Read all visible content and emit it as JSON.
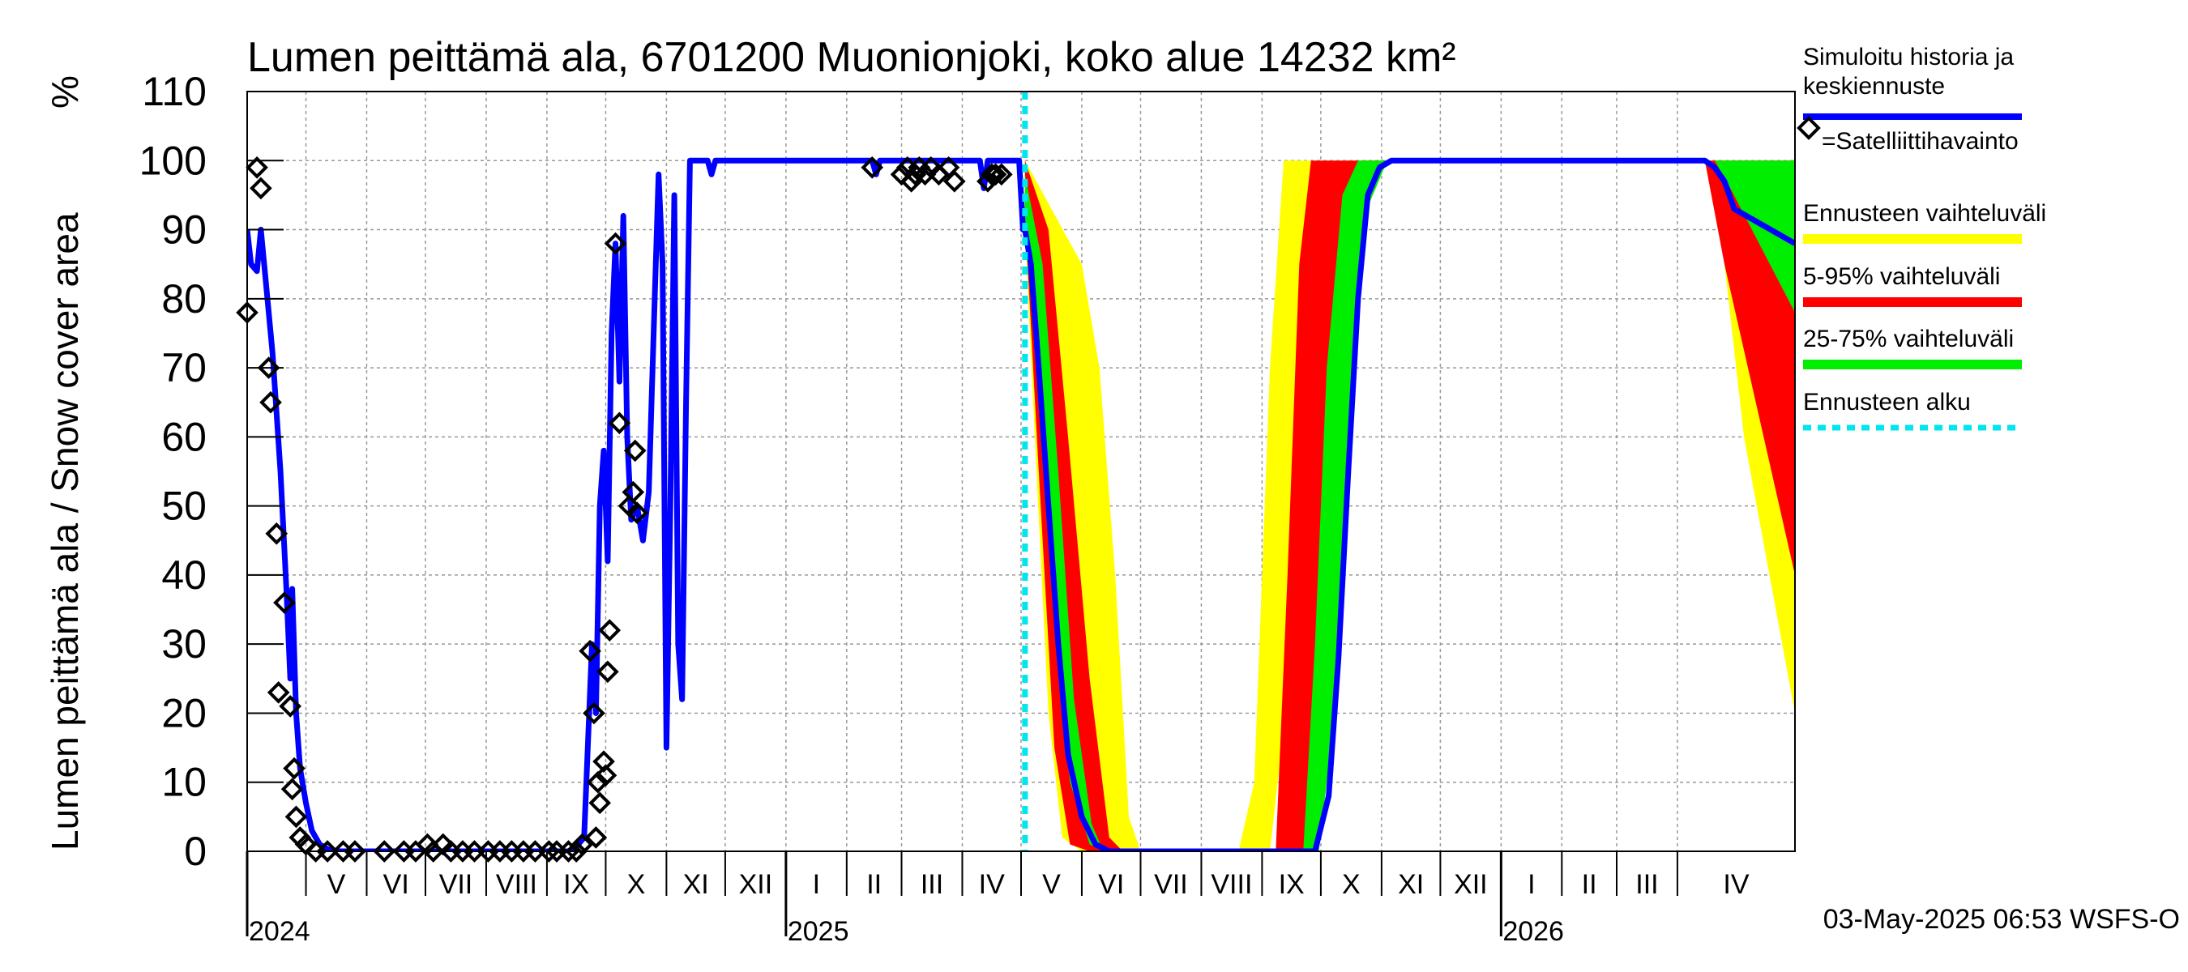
{
  "chart_data": {
    "type": "area",
    "title": "Lumen peittämä ala, 6701200 Muonionjoki, koko alue 14232 km²",
    "ylabel": "Lumen peittämä ala / Snow cover area",
    "yunit": "%",
    "ylim": [
      0,
      110
    ],
    "yticks": [
      0,
      10,
      20,
      30,
      40,
      50,
      60,
      70,
      80,
      90,
      100,
      110
    ],
    "xlim": [
      "2024-04-01",
      "2026-05-31"
    ],
    "grid": true,
    "legend_position": "right",
    "months": [
      {
        "label": "V",
        "start": "2024-05-01"
      },
      {
        "label": "VI",
        "start": "2024-06-01"
      },
      {
        "label": "VII",
        "start": "2024-07-01"
      },
      {
        "label": "VIII",
        "start": "2024-08-01"
      },
      {
        "label": "IX",
        "start": "2024-09-01"
      },
      {
        "label": "X",
        "start": "2024-10-01"
      },
      {
        "label": "XI",
        "start": "2024-11-01"
      },
      {
        "label": "XII",
        "start": "2024-12-01"
      },
      {
        "label": "I",
        "start": "2025-01-01"
      },
      {
        "label": "II",
        "start": "2025-02-01"
      },
      {
        "label": "III",
        "start": "2025-03-01"
      },
      {
        "label": "IV",
        "start": "2025-04-01"
      },
      {
        "label": "V",
        "start": "2025-05-01"
      },
      {
        "label": "VI",
        "start": "2025-06-01"
      },
      {
        "label": "VII",
        "start": "2025-07-01"
      },
      {
        "label": "VIII",
        "start": "2025-08-01"
      },
      {
        "label": "IX",
        "start": "2025-09-01"
      },
      {
        "label": "X",
        "start": "2025-10-01"
      },
      {
        "label": "XI",
        "start": "2025-11-01"
      },
      {
        "label": "XII",
        "start": "2025-12-01"
      },
      {
        "label": "I",
        "start": "2026-01-01"
      },
      {
        "label": "II",
        "start": "2026-02-01"
      },
      {
        "label": "III",
        "start": "2026-03-01"
      },
      {
        "label": "IV",
        "start": "2026-04-01"
      }
    ],
    "years": [
      {
        "label": "2024",
        "date": "2024-04-01"
      },
      {
        "label": "2025",
        "date": "2025-01-01"
      },
      {
        "label": "2026",
        "date": "2026-01-01"
      }
    ],
    "forecast_start": "2025-05-03",
    "legend": [
      {
        "label": "Simuloitu historia ja keskiennuste",
        "color": "#0000ff",
        "style": "line"
      },
      {
        "label": "=Satelliittihavainto",
        "color": "#000000",
        "style": "marker"
      },
      {
        "label": "Ennusteen vaihteluväli",
        "color": "#ffff00",
        "style": "band"
      },
      {
        "label": "5-95% vaihteluväli",
        "color": "#ff0000",
        "style": "band"
      },
      {
        "label": "25-75% vaihteluväli",
        "color": "#00ee00",
        "style": "band"
      },
      {
        "label": "Ennusteen alku",
        "color": "#00e5ee",
        "style": "dashed"
      }
    ],
    "series": [
      {
        "name": "Simuloitu historia ja keskiennuste",
        "color": "#0000ff",
        "points": [
          [
            "2024-04-01",
            90
          ],
          [
            "2024-04-03",
            85
          ],
          [
            "2024-04-06",
            84
          ],
          [
            "2024-04-08",
            90
          ],
          [
            "2024-04-10",
            84
          ],
          [
            "2024-04-14",
            72
          ],
          [
            "2024-04-18",
            55
          ],
          [
            "2024-04-21",
            38
          ],
          [
            "2024-04-23",
            25
          ],
          [
            "2024-04-24",
            38
          ],
          [
            "2024-04-26",
            20
          ],
          [
            "2024-04-28",
            12
          ],
          [
            "2024-05-01",
            7
          ],
          [
            "2024-05-04",
            3
          ],
          [
            "2024-05-08",
            1
          ],
          [
            "2024-05-14",
            0
          ],
          [
            "2024-09-14",
            0
          ],
          [
            "2024-09-20",
            2
          ],
          [
            "2024-09-24",
            30
          ],
          [
            "2024-09-26",
            20
          ],
          [
            "2024-09-28",
            50
          ],
          [
            "2024-09-30",
            58
          ],
          [
            "2024-10-02",
            42
          ],
          [
            "2024-10-04",
            75
          ],
          [
            "2024-10-06",
            88
          ],
          [
            "2024-10-08",
            68
          ],
          [
            "2024-10-10",
            92
          ],
          [
            "2024-10-12",
            60
          ],
          [
            "2024-10-14",
            48
          ],
          [
            "2024-10-17",
            50
          ],
          [
            "2024-10-20",
            45
          ],
          [
            "2024-10-23",
            52
          ],
          [
            "2024-10-26",
            80
          ],
          [
            "2024-10-28",
            98
          ],
          [
            "2024-10-30",
            85
          ],
          [
            "2024-11-01",
            15
          ],
          [
            "2024-11-03",
            50
          ],
          [
            "2024-11-05",
            95
          ],
          [
            "2024-11-07",
            30
          ],
          [
            "2024-11-09",
            22
          ],
          [
            "2024-11-11",
            65
          ],
          [
            "2024-11-13",
            100
          ],
          [
            "2024-11-22",
            100
          ],
          [
            "2024-11-24",
            98
          ],
          [
            "2024-11-26",
            100
          ],
          [
            "2025-02-14",
            100
          ],
          [
            "2025-02-16",
            98
          ],
          [
            "2025-02-18",
            100
          ],
          [
            "2025-04-10",
            100
          ],
          [
            "2025-04-12",
            96
          ],
          [
            "2025-04-14",
            100
          ],
          [
            "2025-04-30",
            100
          ],
          [
            "2025-05-02",
            90
          ],
          [
            "2025-05-03",
            90
          ],
          [
            "2025-05-06",
            85
          ],
          [
            "2025-05-10",
            70
          ],
          [
            "2025-05-15",
            50
          ],
          [
            "2025-05-20",
            30
          ],
          [
            "2025-05-25",
            14
          ],
          [
            "2025-06-01",
            5
          ],
          [
            "2025-06-08",
            1
          ],
          [
            "2025-06-15",
            0
          ],
          [
            "2025-09-28",
            0
          ],
          [
            "2025-10-05",
            8
          ],
          [
            "2025-10-10",
            28
          ],
          [
            "2025-10-15",
            55
          ],
          [
            "2025-10-20",
            80
          ],
          [
            "2025-10-25",
            95
          ],
          [
            "2025-10-31",
            99
          ],
          [
            "2025-11-06",
            100
          ],
          [
            "2026-04-15",
            100
          ],
          [
            "2026-04-20",
            99
          ],
          [
            "2026-04-25",
            97
          ],
          [
            "2026-04-30",
            93
          ],
          [
            "2026-05-31",
            88
          ]
        ]
      },
      {
        "name": "=Satelliittihavainto",
        "color": "#000000",
        "points": [
          [
            "2024-04-01",
            78
          ],
          [
            "2024-04-06",
            99
          ],
          [
            "2024-04-08",
            96
          ],
          [
            "2024-04-12",
            70
          ],
          [
            "2024-04-13",
            65
          ],
          [
            "2024-04-16",
            46
          ],
          [
            "2024-04-20",
            36
          ],
          [
            "2024-04-17",
            23
          ],
          [
            "2024-04-23",
            21
          ],
          [
            "2024-04-25",
            12
          ],
          [
            "2024-04-24",
            9
          ],
          [
            "2024-04-26",
            5
          ],
          [
            "2024-04-28",
            2
          ],
          [
            "2024-05-01",
            1
          ],
          [
            "2024-05-06",
            0
          ],
          [
            "2024-05-12",
            0
          ],
          [
            "2024-05-20",
            0
          ],
          [
            "2024-05-26",
            0
          ],
          [
            "2024-06-10",
            0
          ],
          [
            "2024-06-20",
            0
          ],
          [
            "2024-06-26",
            0
          ],
          [
            "2024-07-02",
            1
          ],
          [
            "2024-07-05",
            0
          ],
          [
            "2024-07-10",
            1
          ],
          [
            "2024-07-14",
            0
          ],
          [
            "2024-07-20",
            0
          ],
          [
            "2024-07-26",
            0
          ],
          [
            "2024-08-02",
            0
          ],
          [
            "2024-08-08",
            0
          ],
          [
            "2024-08-14",
            0
          ],
          [
            "2024-08-20",
            0
          ],
          [
            "2024-08-26",
            0
          ],
          [
            "2024-09-02",
            0
          ],
          [
            "2024-09-06",
            0
          ],
          [
            "2024-09-12",
            0
          ],
          [
            "2024-09-16",
            0
          ],
          [
            "2024-09-19",
            1
          ],
          [
            "2024-09-23",
            29
          ],
          [
            "2024-09-25",
            20
          ],
          [
            "2024-09-26",
            2
          ],
          [
            "2024-09-27",
            10
          ],
          [
            "2024-09-28",
            7
          ],
          [
            "2024-09-30",
            13
          ],
          [
            "2024-10-01",
            11
          ],
          [
            "2024-10-02",
            26
          ],
          [
            "2024-10-03",
            32
          ],
          [
            "2024-10-06",
            88
          ],
          [
            "2024-10-08",
            62
          ],
          [
            "2024-10-13",
            50
          ],
          [
            "2024-10-16",
            58
          ],
          [
            "2024-10-15",
            52
          ],
          [
            "2024-10-17",
            49
          ],
          [
            "2025-02-14",
            99
          ],
          [
            "2025-03-01",
            98
          ],
          [
            "2025-03-04",
            99
          ],
          [
            "2025-03-06",
            97
          ],
          [
            "2025-03-08",
            98
          ],
          [
            "2025-03-10",
            99
          ],
          [
            "2025-03-13",
            98
          ],
          [
            "2025-03-16",
            99
          ],
          [
            "2025-03-20",
            98
          ],
          [
            "2025-03-25",
            99
          ],
          [
            "2025-03-28",
            97
          ],
          [
            "2025-04-14",
            97
          ],
          [
            "2025-04-16",
            98
          ],
          [
            "2025-04-18",
            98
          ],
          [
            "2025-04-21",
            98
          ]
        ]
      },
      {
        "name": "Ennusteen vaihteluväli",
        "color": "#ffff00",
        "points_lower": [
          [
            "2025-05-03",
            90
          ],
          [
            "2025-05-08",
            60
          ],
          [
            "2025-05-15",
            20
          ],
          [
            "2025-05-22",
            2
          ],
          [
            "2025-06-01",
            0
          ],
          [
            "2025-09-05",
            0
          ],
          [
            "2025-09-15",
            25
          ],
          [
            "2025-09-22",
            60
          ],
          [
            "2025-09-30",
            85
          ],
          [
            "2025-10-10",
            98
          ],
          [
            "2025-10-20",
            100
          ],
          [
            "2026-04-18",
            100
          ],
          [
            "2026-04-25",
            85
          ],
          [
            "2026-05-05",
            60
          ],
          [
            "2026-05-31",
            20
          ]
        ],
        "points_upper": [
          [
            "2025-05-03",
            100
          ],
          [
            "2025-06-01",
            85
          ],
          [
            "2025-06-10",
            70
          ],
          [
            "2025-06-18",
            40
          ],
          [
            "2025-06-25",
            5
          ],
          [
            "2025-07-01",
            0
          ],
          [
            "2025-08-20",
            0
          ],
          [
            "2025-08-28",
            10
          ],
          [
            "2025-09-05",
            70
          ],
          [
            "2025-09-12",
            100
          ],
          [
            "2026-05-31",
            100
          ]
        ]
      },
      {
        "name": "5-95% vaihteluväli",
        "color": "#ff0000",
        "points_lower": [
          [
            "2025-05-03",
            92
          ],
          [
            "2025-05-10",
            55
          ],
          [
            "2025-05-18",
            15
          ],
          [
            "2025-05-26",
            1
          ],
          [
            "2025-06-05",
            0
          ],
          [
            "2025-09-26",
            0
          ],
          [
            "2025-10-04",
            20
          ],
          [
            "2025-10-12",
            60
          ],
          [
            "2025-10-20",
            90
          ],
          [
            "2025-10-30",
            99
          ],
          [
            "2025-11-08",
            100
          ],
          [
            "2026-04-15",
            100
          ],
          [
            "2026-04-25",
            85
          ],
          [
            "2026-05-31",
            40
          ]
        ],
        "points_upper": [
          [
            "2025-05-03",
            100
          ],
          [
            "2025-05-15",
            90
          ],
          [
            "2025-05-25",
            60
          ],
          [
            "2025-06-05",
            25
          ],
          [
            "2025-06-15",
            2
          ],
          [
            "2025-06-22",
            0
          ],
          [
            "2025-09-08",
            0
          ],
          [
            "2025-09-14",
            40
          ],
          [
            "2025-09-20",
            85
          ],
          [
            "2025-09-26",
            100
          ],
          [
            "2026-05-31",
            100
          ]
        ]
      },
      {
        "name": "25-75% vaihteluväli",
        "color": "#00ee00",
        "points_lower": [
          [
            "2025-05-03",
            92
          ],
          [
            "2025-05-10",
            68
          ],
          [
            "2025-05-18",
            35
          ],
          [
            "2025-05-26",
            10
          ],
          [
            "2025-06-05",
            1
          ],
          [
            "2025-06-12",
            0
          ],
          [
            "2025-09-30",
            0
          ],
          [
            "2025-10-06",
            15
          ],
          [
            "2025-10-12",
            45
          ],
          [
            "2025-10-18",
            75
          ],
          [
            "2025-10-26",
            94
          ],
          [
            "2025-11-04",
            100
          ],
          [
            "2026-04-20",
            100
          ],
          [
            "2026-04-28",
            96
          ],
          [
            "2026-05-31",
            78
          ]
        ],
        "points_upper": [
          [
            "2025-05-03",
            98
          ],
          [
            "2025-05-12",
            85
          ],
          [
            "2025-05-20",
            55
          ],
          [
            "2025-05-28",
            22
          ],
          [
            "2025-06-06",
            4
          ],
          [
            "2025-06-12",
            0
          ],
          [
            "2025-09-22",
            0
          ],
          [
            "2025-09-28",
            30
          ],
          [
            "2025-10-04",
            70
          ],
          [
            "2025-10-12",
            95
          ],
          [
            "2025-10-20",
            100
          ],
          [
            "2026-05-31",
            100
          ]
        ]
      }
    ],
    "footer_timestamp": "03-May-2025 06:53 WSFS-O"
  }
}
